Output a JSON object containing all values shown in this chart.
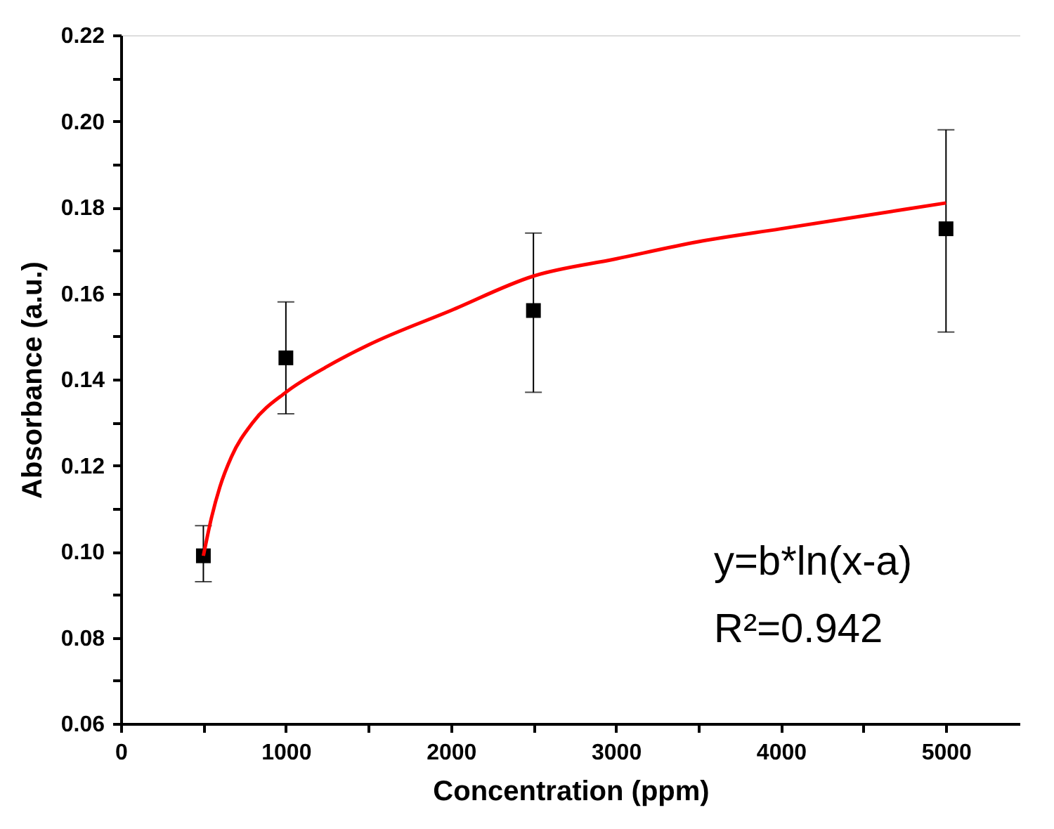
{
  "chart_data": {
    "type": "scatter",
    "xlabel": "Concentration (ppm)",
    "ylabel": "Absorbance (a.u.)",
    "xlim": [
      0,
      5450
    ],
    "ylim": [
      0.06,
      0.22
    ],
    "xticks": [
      0,
      {
        "value": 500,
        "label": null
      },
      1000,
      {
        "value": 1500,
        "label": null
      },
      2000,
      {
        "value": 2500,
        "label": null
      },
      3000,
      {
        "value": 3500,
        "label": null
      },
      4000,
      {
        "value": 4500,
        "label": null
      },
      5000
    ],
    "yticks": [
      0.06,
      {
        "value": 0.07,
        "label": null
      },
      0.08,
      {
        "value": 0.09,
        "label": null
      },
      {
        "value": 0.1,
        "label": "0.10"
      },
      {
        "value": 0.11,
        "label": null
      },
      0.12,
      {
        "value": 0.13,
        "label": null
      },
      0.14,
      {
        "value": 0.15,
        "label": null
      },
      0.16,
      {
        "value": 0.17,
        "label": null
      },
      0.18,
      {
        "value": 0.19,
        "label": null
      },
      {
        "value": 0.2,
        "label": "0.20"
      },
      {
        "value": 0.21,
        "label": null
      },
      0.22
    ],
    "grid": false,
    "series": [
      {
        "color": "#000000",
        "marker": "square",
        "x": [
          500,
          1000,
          2500,
          5000
        ],
        "values": [
          0.099,
          0.145,
          0.156,
          0.175
        ],
        "errors": [
          [
            0.093,
            0.106
          ],
          [
            0.132,
            0.158
          ],
          [
            0.137,
            0.174
          ],
          [
            0.151,
            0.198
          ]
        ]
      },
      {
        "type": "line",
        "color": "#ff0000",
        "line_style": "solid",
        "x": [
          500,
          550,
          600,
          670,
          800,
          1000,
          1250,
          1500,
          2000,
          2500,
          3000,
          3500,
          4000,
          4500,
          5000
        ],
        "values": [
          0.099,
          0.108,
          0.115,
          0.122,
          0.13,
          0.137,
          0.143,
          0.148,
          0.156,
          0.164,
          0.168,
          0.172,
          0.175,
          0.178,
          0.181
        ]
      }
    ],
    "annotations": [
      "y=b*ln(x-a)",
      "R²=0.942"
    ]
  }
}
